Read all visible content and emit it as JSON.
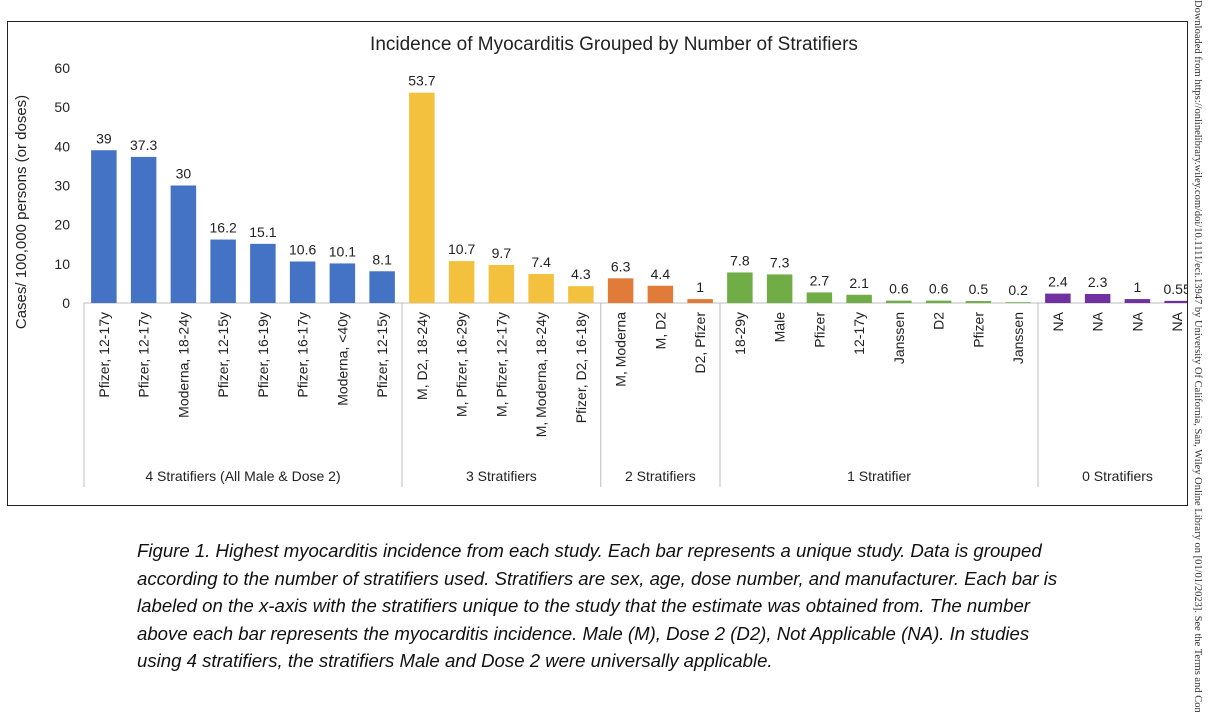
{
  "chart_data": {
    "type": "bar",
    "title": "Incidence of Myocarditis Grouped by Number of Stratifiers",
    "xlabel": "",
    "ylabel": "Cases/ 100,000 persons (or doses)",
    "ylim": [
      0,
      60
    ],
    "yticks": [
      0,
      10,
      20,
      30,
      40,
      50,
      60
    ],
    "grid": false,
    "legend": "none",
    "groups": [
      {
        "name": "4 Stratifiers (All Male & Dose 2)",
        "color": "#4472C4",
        "categories": [
          "Pfizer, 12-17y",
          "Pfizer, 12-17y",
          "Moderna, 18-24y",
          "Pfizer, 12-15y",
          "Pfizer, 16-19y",
          "Pfizer, 16-17y",
          "Moderna, <40y",
          "Pfizer, 12-15y"
        ],
        "values": [
          39,
          37.3,
          30,
          16.2,
          15.1,
          10.6,
          10.1,
          8.1
        ],
        "labels": [
          "39",
          "37.3",
          "30",
          "16.2",
          "15.1",
          "10.6",
          "10.1",
          "8.1"
        ]
      },
      {
        "name": "3 Stratifiers",
        "color": "#F4C13E",
        "categories": [
          "M, D2, 18-24y",
          "M, Pfizer, 16-29y",
          "M, Pfizer, 12-17y",
          "M, Moderna, 18-24y",
          "Pfizer, D2, 16-18y"
        ],
        "values": [
          53.7,
          10.7,
          9.7,
          7.4,
          4.3
        ],
        "labels": [
          "53.7",
          "10.7",
          "9.7",
          "7.4",
          "4.3"
        ]
      },
      {
        "name": "2 Stratifiers",
        "color": "#E07B39",
        "categories": [
          "M, Moderna",
          "M, D2",
          "D2, Pfizer"
        ],
        "values": [
          6.3,
          4.4,
          1
        ],
        "labels": [
          "6.3",
          "4.4",
          "1"
        ]
      },
      {
        "name": "1 Stratifier",
        "color": "#70AD47",
        "categories": [
          "18-29y",
          "Male",
          "Pfizer",
          "12-17y",
          "Janssen",
          "D2",
          "Pfizer",
          "Janssen"
        ],
        "values": [
          7.8,
          7.3,
          2.7,
          2.1,
          0.6,
          0.6,
          0.5,
          0.2
        ],
        "labels": [
          "7.8",
          "7.3",
          "2.7",
          "2.1",
          "0.6",
          "0.6",
          "0.5",
          "0.2"
        ]
      },
      {
        "name": "0 Stratifiers",
        "color": "#7030A0",
        "categories": [
          "NA",
          "NA",
          "NA",
          "NA"
        ],
        "values": [
          2.4,
          2.3,
          1,
          0.55
        ],
        "labels": [
          "2.4",
          "2.3",
          "1",
          "0.55"
        ]
      }
    ]
  },
  "caption": "Figure 1. Highest myocarditis incidence from each study. Each bar represents a unique study. Data is grouped according to the number of stratifiers used. Stratifiers are sex, age, dose number, and manufacturer. Each bar is labeled on the x-axis with the stratifiers unique to the study that the estimate was obtained from. The number above each bar represents the myocarditis incidence. Male (M), Dose 2 (D2), Not Applicable (NA). In studies using 4 stratifiers, the stratifiers Male and Dose 2 were universally applicable.",
  "side_note": "Downloaded from https://onlinelibrary.wiley.com/doi/10.1111/eci.13947 by University Of California, San, Wiley Online Library on [01/01/2023]. See the Terms and Conditions"
}
